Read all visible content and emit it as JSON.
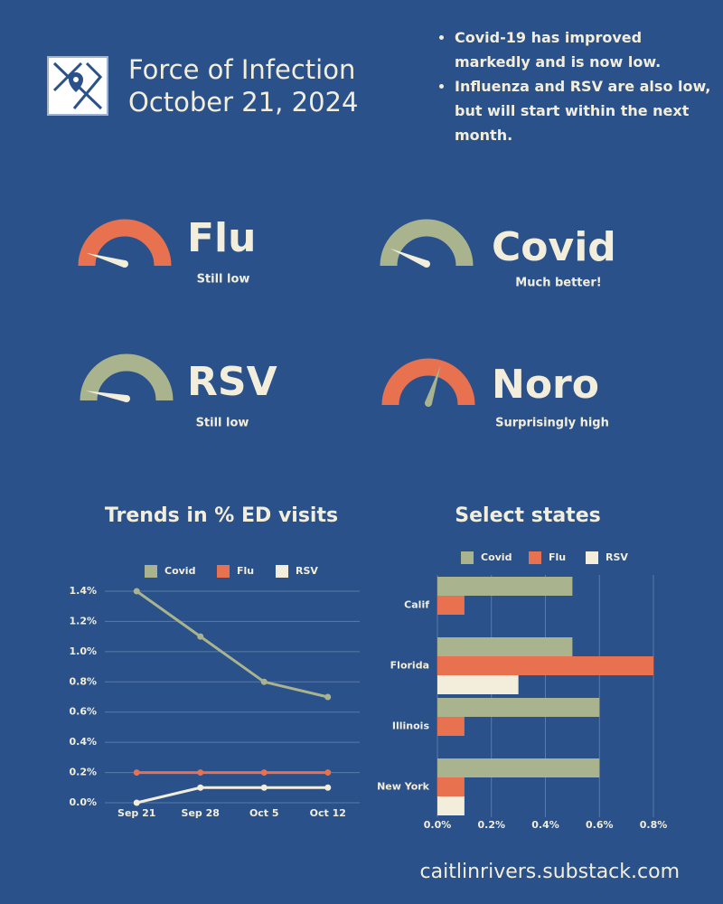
{
  "header": {
    "title": "Force of Infection",
    "date": "October 21, 2024"
  },
  "bullets": [
    "Covid-19 has improved markedly and is now low.",
    "Influenza and RSV are also low, but will start within the next month."
  ],
  "gauges": [
    {
      "label": "Flu",
      "note": "Still low"
    },
    {
      "label": "Covid",
      "note": "Much better!"
    },
    {
      "label": "RSV",
      "note": "Still low"
    },
    {
      "label": "Noro",
      "note": "Surprisingly high"
    }
  ],
  "chart_data": [
    {
      "type": "line",
      "title": "Trends in % ED visits",
      "categories": [
        "Sep 21",
        "Sep 28",
        "Oct 5",
        "Oct 12"
      ],
      "series": [
        {
          "name": "Covid",
          "color": "#a9b48e",
          "values": [
            1.4,
            1.1,
            0.8,
            0.7
          ]
        },
        {
          "name": "Flu",
          "color": "#e8714f",
          "values": [
            0.2,
            0.2,
            0.2,
            0.2
          ]
        },
        {
          "name": "RSV",
          "color": "#f3eedb",
          "values": [
            0,
            0.1,
            0.1,
            0.1
          ]
        }
      ],
      "ylim": [
        0,
        1.4
      ],
      "yticks": [
        {
          "value": 0,
          "label": "0.0%"
        },
        {
          "value": 0.2,
          "label": "0.2%"
        },
        {
          "value": 0.4,
          "label": "0.4%"
        },
        {
          "value": 0.6,
          "label": "0.6%"
        },
        {
          "value": 0.8,
          "label": "0.8%"
        },
        {
          "value": 1.0,
          "label": "1.0%"
        },
        {
          "value": 1.2,
          "label": "1.2%"
        },
        {
          "value": 1.4,
          "label": "1.4%"
        }
      ],
      "grid": true,
      "legend": "top"
    },
    {
      "type": "bar",
      "orientation": "horizontal",
      "title": "Select states",
      "categories": [
        "Calif",
        "Florida",
        "Illinois",
        "New York"
      ],
      "series": [
        {
          "name": "Covid",
          "color": "#a9b48e",
          "values": [
            0.5,
            0.5,
            0.6,
            0.6
          ]
        },
        {
          "name": "Flu",
          "color": "#e8714f",
          "values": [
            0.1,
            0.8,
            0.1,
            0.1
          ]
        },
        {
          "name": "RSV",
          "color": "#f3eedb",
          "values": [
            0,
            0.3,
            0,
            0.1
          ]
        }
      ],
      "xlim": [
        0,
        0.8
      ],
      "xticks": [
        {
          "value": 0,
          "label": "0.0%"
        },
        {
          "value": 0.2,
          "label": "0.2%"
        },
        {
          "value": 0.4,
          "label": "0.4%"
        },
        {
          "value": 0.6,
          "label": "0.6%"
        },
        {
          "value": 0.8,
          "label": "0.8%"
        }
      ],
      "grid": true,
      "legend": "top"
    }
  ],
  "footer": "caitlinrivers.substack.com"
}
